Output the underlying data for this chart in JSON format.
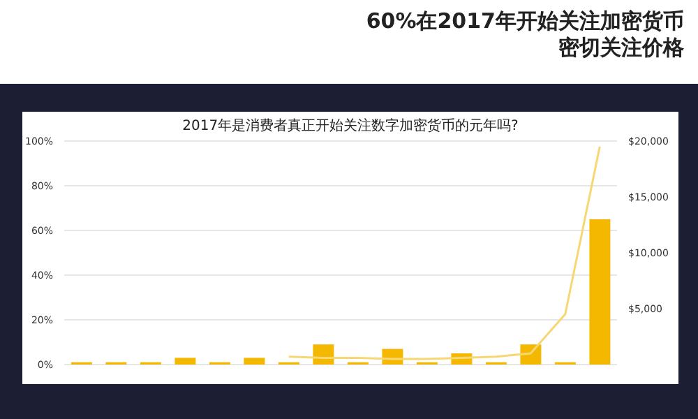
{
  "chart_data": {
    "type": "bar",
    "title": "60%在2017年开始关注加密货币",
    "subtitle": "密切关注价格",
    "annotations": [
      "2017年是消费者真正开始关注数字加密货币的元年吗?"
    ],
    "categories": [
      null,
      null,
      null,
      null,
      null,
      null,
      null,
      null,
      null,
      null,
      null,
      null,
      null,
      null,
      null,
      null
    ],
    "series": [
      {
        "color": "#f5b800",
        "values": [
          1,
          1,
          1,
          3,
          1,
          3,
          1,
          9,
          1,
          7,
          1,
          5,
          1,
          9,
          1,
          65
        ]
      },
      {
        "type": "line",
        "axis": "y2",
        "color": "#f7d774",
        "values": [
          null,
          null,
          null,
          null,
          null,
          null,
          700,
          600,
          600,
          500,
          500,
          600,
          700,
          1000,
          4500,
          19500
        ]
      }
    ],
    "ylim": [
      0,
      100
    ],
    "yticks": [
      {
        "value": 0,
        "label": "0%"
      },
      {
        "value": 20,
        "label": "20%"
      },
      {
        "value": 40,
        "label": "40%"
      },
      {
        "value": 60,
        "label": "60%"
      },
      {
        "value": 80,
        "label": "80%"
      },
      {
        "value": 100,
        "label": "100%"
      }
    ],
    "y2lim": [
      0,
      20000
    ],
    "y2ticks": [
      {
        "value": 5000,
        "label": "$5,000"
      },
      {
        "value": 10000,
        "label": "$10,000"
      },
      {
        "value": 15000,
        "label": "$15,000"
      },
      {
        "value": 20000,
        "label": "$20,000"
      }
    ],
    "grid": "y"
  }
}
